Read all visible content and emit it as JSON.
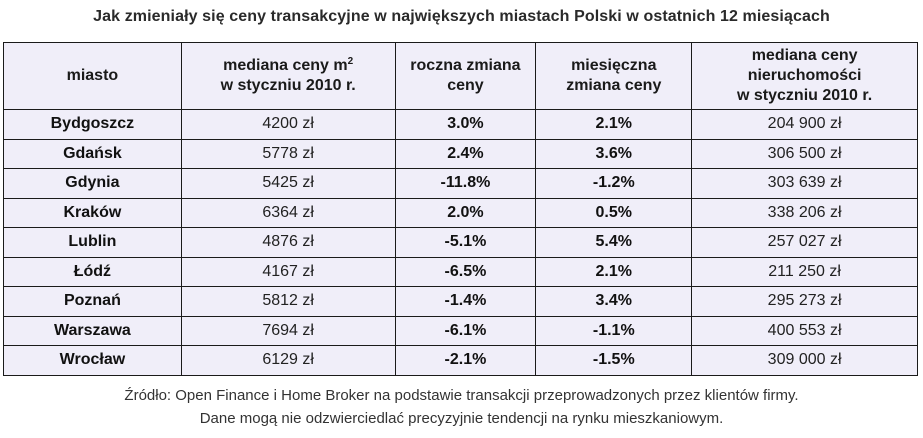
{
  "title": "Jak zmieniały się ceny transakcyjne w największych miastach Polski w ostatnich 12 miesiącach",
  "table": {
    "headers": {
      "city": "miasto",
      "median_m2_line1": "mediana ceny m",
      "median_m2_sup": "2",
      "median_m2_line2": "w styczniu 2010 r.",
      "annual_line1": "roczna zmiana",
      "annual_line2": "ceny",
      "monthly_line1": "miesięczna",
      "monthly_line2": "zmiana ceny",
      "property_line1": "mediana ceny",
      "property_line2": "nieruchomości",
      "property_line3": "w styczniu 2010 r."
    },
    "rows": [
      {
        "city": "Bydgoszcz",
        "m2": "4200 zł",
        "annual": "3.0%",
        "monthly": "2.1%",
        "property": "204 900 zł"
      },
      {
        "city": "Gdańsk",
        "m2": "5778 zł",
        "annual": "2.4%",
        "monthly": "3.6%",
        "property": "306 500 zł"
      },
      {
        "city": "Gdynia",
        "m2": "5425 zł",
        "annual": "-11.8%",
        "monthly": "-1.2%",
        "property": "303 639 zł"
      },
      {
        "city": "Kraków",
        "m2": "6364 zł",
        "annual": "2.0%",
        "monthly": "0.5%",
        "property": "338 206 zł"
      },
      {
        "city": "Lublin",
        "m2": "4876 zł",
        "annual": "-5.1%",
        "monthly": "5.4%",
        "property": "257 027 zł"
      },
      {
        "city": "Łódź",
        "m2": "4167 zł",
        "annual": "-6.5%",
        "monthly": "2.1%",
        "property": "211 250 zł"
      },
      {
        "city": "Poznań",
        "m2": "5812 zł",
        "annual": "-1.4%",
        "monthly": "3.4%",
        "property": "295 273 zł"
      },
      {
        "city": "Warszawa",
        "m2": "7694 zł",
        "annual": "-6.1%",
        "monthly": "-1.1%",
        "property": "400 553 zł"
      },
      {
        "city": "Wrocław",
        "m2": "6129 zł",
        "annual": "-2.1%",
        "monthly": "-1.5%",
        "property": "309 000 zł"
      }
    ]
  },
  "footer": {
    "line1": "Źródło: Open Finance i Home Broker na podstawie transakcji przeprowadzonych przez klientów firmy.",
    "line2": "Dane mogą nie odzwierciedlać precyzyjnie tendencji na rynku mieszkaniowym."
  },
  "colors": {
    "table_background": "#f0eef9",
    "border": "#1a1a1a"
  }
}
